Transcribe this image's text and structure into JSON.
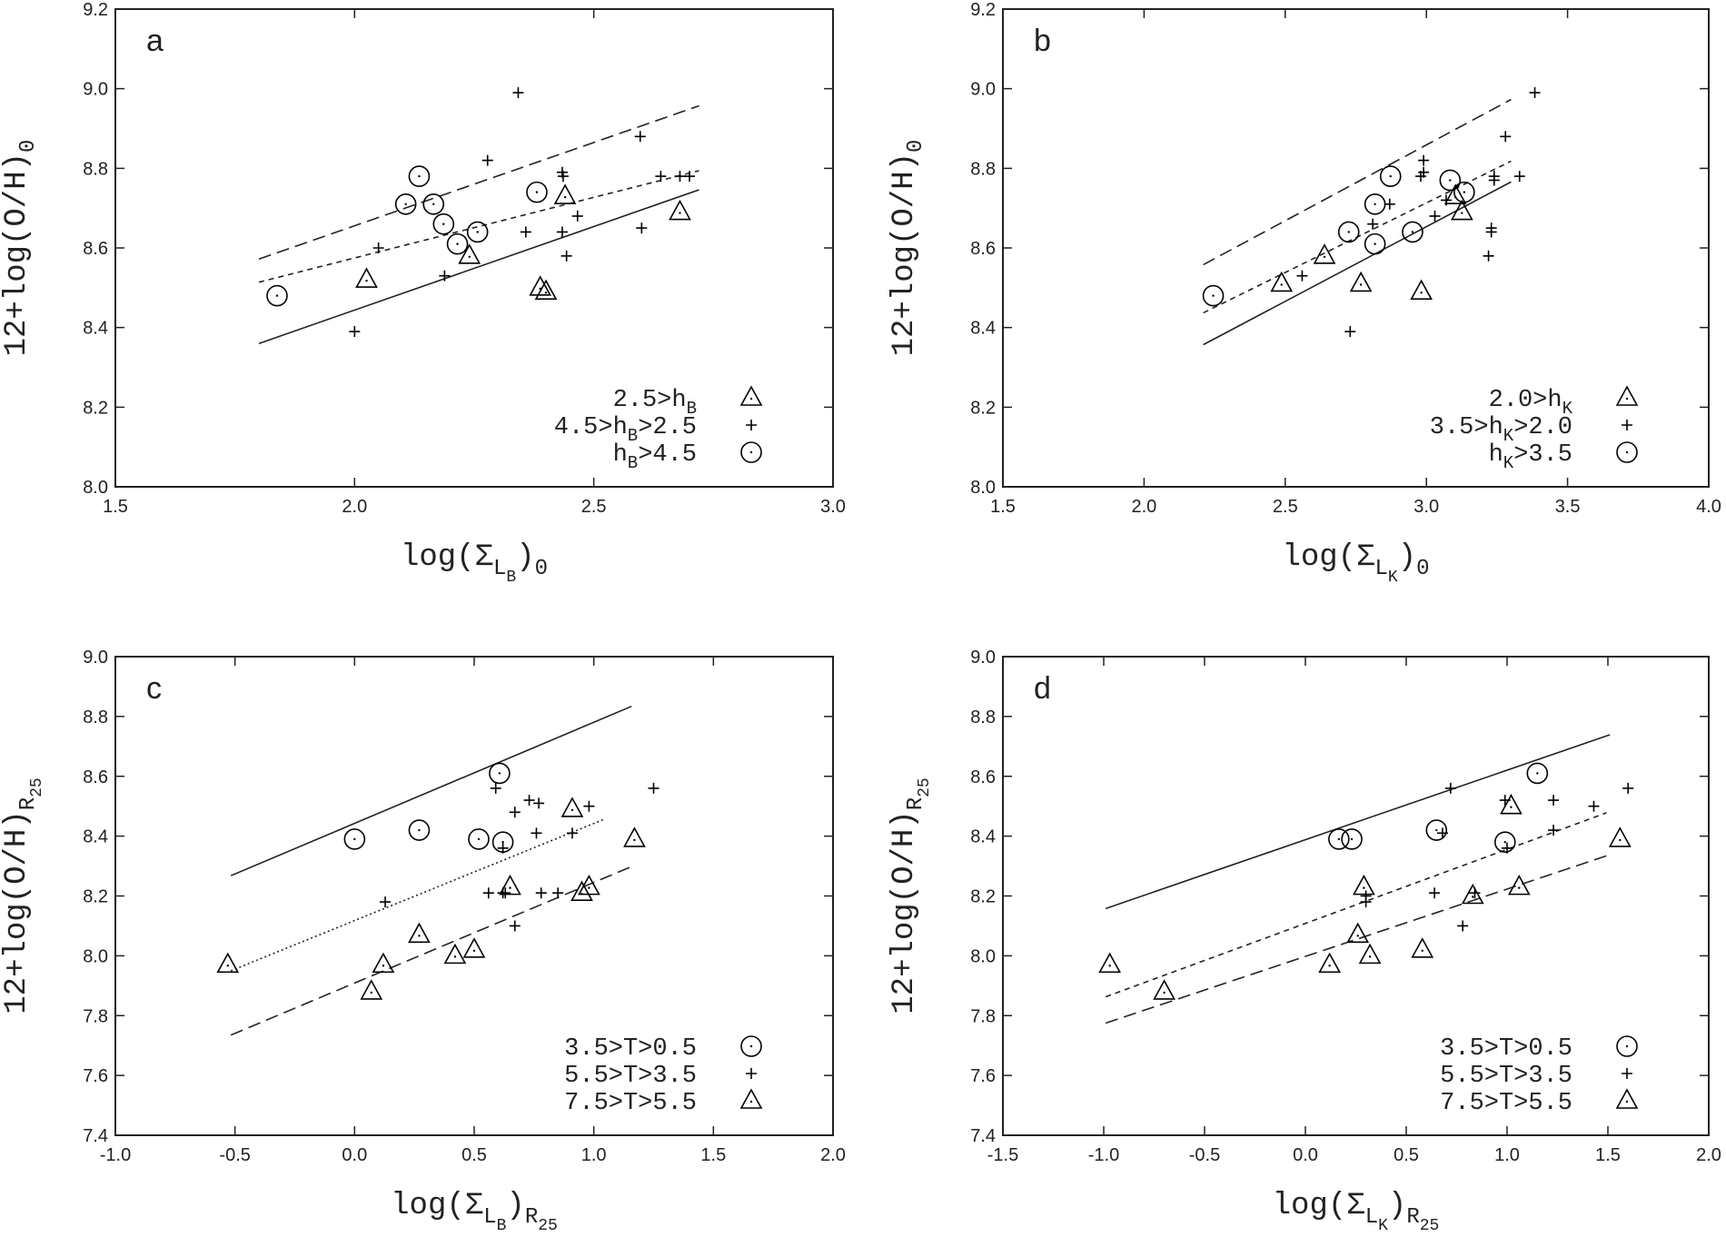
{
  "chart_data": [
    {
      "type": "scatter",
      "panel": "a",
      "xlabel": [
        "log(Σ",
        "L",
        "B",
        ")",
        "0"
      ],
      "ylabel": [
        "12+log(O/H)",
        "0"
      ],
      "xlim": [
        1.5,
        3.0
      ],
      "ylim": [
        8.0,
        9.2
      ],
      "xticks": [
        1.5,
        {
          "value": 2,
          "label": "2.0"
        },
        2.5,
        {
          "value": 3,
          "label": "3.0"
        }
      ],
      "yticks": [
        {
          "value": 8,
          "label": "8.0"
        },
        8.2,
        8.4,
        8.6,
        8.8,
        {
          "value": 9,
          "label": "9.0"
        },
        9.2
      ],
      "series": [
        {
          "name": [
            "2.5>h",
            "B"
          ],
          "marker": "triangle",
          "color": "#000000",
          "x": [
            2.025,
            2.24,
            2.388,
            2.4,
            2.44,
            2.68
          ],
          "y": [
            8.52,
            8.58,
            8.5,
            8.49,
            8.73,
            8.69
          ]
        },
        {
          "name": [
            "4.5>h",
            "B",
            ">2.5"
          ],
          "marker": "plus",
          "color": "#000000",
          "x": [
            2.342,
            2.278,
            2.05,
            2.0,
            2.188,
            2.358,
            2.434,
            2.436,
            2.434,
            2.443,
            2.466,
            2.597,
            2.6,
            2.64,
            2.68,
            2.7
          ],
          "y": [
            8.99,
            8.82,
            8.6,
            8.39,
            8.53,
            8.64,
            8.79,
            8.78,
            8.64,
            8.58,
            8.68,
            8.88,
            8.65,
            8.78,
            8.78,
            8.78
          ]
        },
        {
          "name": [
            "h",
            "B",
            ">4.5"
          ],
          "marker": "circle",
          "color": "#000000",
          "x": [
            1.838,
            2.135,
            2.107,
            2.165,
            2.186,
            2.215,
            2.257,
            2.381
          ],
          "y": [
            8.48,
            8.78,
            8.71,
            8.71,
            8.66,
            8.61,
            8.64,
            8.74
          ]
        }
      ],
      "fits": [
        {
          "style": "solid",
          "x": [
            1.8,
            2.72
          ],
          "y": [
            8.36,
            8.746
          ]
        },
        {
          "style": "dashed",
          "x": [
            1.8,
            2.72
          ],
          "y": [
            8.572,
            8.957
          ]
        },
        {
          "style": "shortdash",
          "x": [
            1.8,
            2.72
          ],
          "y": [
            8.514,
            8.794
          ]
        }
      ]
    },
    {
      "type": "scatter",
      "panel": "b",
      "xlabel": [
        "log(Σ",
        "L",
        "K",
        ")",
        "0"
      ],
      "ylabel": [
        "12+log(O/H)",
        "0"
      ],
      "xlim": [
        1.5,
        4.0
      ],
      "ylim": [
        8.0,
        9.2
      ],
      "xticks": [
        1.5,
        {
          "value": 2,
          "label": "2.0"
        },
        2.5,
        {
          "value": 3,
          "label": "3.0"
        },
        3.5,
        {
          "value": 4,
          "label": "4.0"
        }
      ],
      "yticks": [
        {
          "value": 8,
          "label": "8.0"
        },
        8.2,
        8.4,
        8.6,
        8.8,
        {
          "value": 9,
          "label": "9.0"
        },
        9.2
      ],
      "series": [
        {
          "name": [
            "2.0>h",
            "K"
          ],
          "marker": "triangle",
          "color": "#000000",
          "x": [
            2.487,
            2.639,
            2.768,
            2.982,
            3.103,
            3.126
          ],
          "y": [
            8.51,
            8.58,
            8.51,
            8.49,
            8.73,
            8.69
          ]
        },
        {
          "name": [
            "3.5>h",
            "K",
            ">2.0"
          ],
          "marker": "plus",
          "color": "#000000",
          "x": [
            3.384,
            3.28,
            2.99,
            2.99,
            2.98,
            2.87,
            2.81,
            3.07,
            3.03,
            3.24,
            3.24,
            3.33,
            3.23,
            3.23,
            3.22,
            2.56,
            2.73
          ],
          "y": [
            8.99,
            8.88,
            8.82,
            8.79,
            8.78,
            8.71,
            8.66,
            8.72,
            8.68,
            8.78,
            8.77,
            8.78,
            8.65,
            8.64,
            8.58,
            8.53,
            8.39
          ]
        },
        {
          "name": [
            "h",
            "K",
            ">3.5"
          ],
          "marker": "circle",
          "color": "#000000",
          "x": [
            2.245,
            2.873,
            2.818,
            2.725,
            2.818,
            2.951,
            3.084,
            3.134
          ],
          "y": [
            8.48,
            8.78,
            8.71,
            8.64,
            8.61,
            8.64,
            8.77,
            8.74
          ]
        }
      ],
      "fits": [
        {
          "style": "solid",
          "x": [
            2.21,
            3.3
          ],
          "y": [
            8.357,
            8.766
          ]
        },
        {
          "style": "dashed",
          "x": [
            2.21,
            3.3
          ],
          "y": [
            8.558,
            8.973
          ]
        },
        {
          "style": "shortdash",
          "x": [
            2.21,
            3.3
          ],
          "y": [
            8.437,
            8.818
          ]
        }
      ]
    },
    {
      "type": "scatter",
      "panel": "c",
      "xlabel": [
        "log(Σ",
        "L",
        "B",
        ")",
        "R",
        "25"
      ],
      "ylabel": [
        "12+log(O/H)",
        "R",
        "25"
      ],
      "xlim": [
        -1.0,
        2.0
      ],
      "ylim": [
        7.4,
        9.0
      ],
      "xticks": [
        {
          "value": -1,
          "label": "-1.0"
        },
        -0.5,
        {
          "value": 0,
          "label": "0.0"
        },
        0.5,
        {
          "value": 1,
          "label": "1.0"
        },
        1.5,
        {
          "value": 2,
          "label": "2.0"
        }
      ],
      "yticks": [
        7.4,
        7.6,
        7.8,
        {
          "value": 8,
          "label": "8.0"
        },
        8.2,
        8.4,
        8.6,
        8.8,
        {
          "value": 9,
          "label": "9.0"
        }
      ],
      "series": [
        {
          "name": [
            "3.5>T>0.5"
          ],
          "marker": "circle",
          "color": "#000000",
          "x": [
            0.0,
            0.27,
            0.606,
            0.519,
            0.62
          ],
          "y": [
            8.39,
            8.42,
            8.61,
            8.39,
            8.38
          ]
        },
        {
          "name": [
            "5.5>T>3.5"
          ],
          "marker": "plus",
          "color": "#000000",
          "x": [
            0.128,
            0.59,
            0.62,
            0.67,
            0.73,
            0.77,
            0.76,
            0.56,
            0.62,
            0.63,
            0.67,
            0.78,
            0.85,
            0.91,
            0.98,
            1.25
          ],
          "y": [
            8.18,
            8.56,
            8.36,
            8.48,
            8.52,
            8.51,
            8.41,
            8.21,
            8.21,
            8.21,
            8.1,
            8.21,
            8.21,
            8.41,
            8.5,
            8.56
          ]
        },
        {
          "name": [
            "7.5>T>5.5"
          ],
          "marker": "triangle",
          "color": "#000000",
          "x": [
            -0.53,
            0.07,
            0.12,
            0.27,
            0.42,
            0.5,
            0.65,
            0.91,
            0.95,
            0.98,
            1.17
          ],
          "y": [
            7.97,
            7.88,
            7.97,
            8.07,
            8.0,
            8.02,
            8.23,
            8.49,
            8.21,
            8.23,
            8.39
          ]
        }
      ],
      "fits": [
        {
          "style": "solid",
          "x": [
            -0.517,
            1.158
          ],
          "y": [
            8.268,
            8.834
          ]
        },
        {
          "style": "dotted",
          "x": [
            -0.517,
            1.039
          ],
          "y": [
            7.95,
            8.455
          ]
        },
        {
          "style": "dashed",
          "x": [
            -0.517,
            1.163
          ],
          "y": [
            7.735,
            8.3
          ]
        }
      ]
    },
    {
      "type": "scatter",
      "panel": "d",
      "xlabel": [
        "log(Σ",
        "L",
        "K",
        ")",
        "R",
        "25"
      ],
      "ylabel": [
        "12+log(O/H)",
        "R",
        "25"
      ],
      "xlim": [
        -1.5,
        2.0
      ],
      "ylim": [
        7.4,
        9.0
      ],
      "xticks": [
        -1.5,
        {
          "value": -1,
          "label": "-1.0"
        },
        -0.5,
        {
          "value": 0,
          "label": "0.0"
        },
        0.5,
        {
          "value": 1,
          "label": "1.0"
        },
        1.5,
        {
          "value": 2,
          "label": "2.0"
        }
      ],
      "yticks": [
        7.4,
        7.6,
        7.8,
        {
          "value": 8,
          "label": "8.0"
        },
        8.2,
        8.4,
        8.6,
        8.8,
        {
          "value": 9,
          "label": "9.0"
        }
      ],
      "series": [
        {
          "name": [
            "3.5>T>0.5"
          ],
          "marker": "circle",
          "color": "#000000",
          "x": [
            0.166,
            0.23,
            0.65,
            0.99,
            1.15
          ],
          "y": [
            8.39,
            8.39,
            8.42,
            8.38,
            8.61
          ]
        },
        {
          "name": [
            "5.5>T>3.5"
          ],
          "marker": "plus",
          "color": "#000000",
          "x": [
            0.3,
            0.3,
            0.64,
            0.68,
            0.72,
            0.78,
            0.84,
            0.99,
            1.0,
            1.23,
            1.23,
            1.43,
            1.6
          ],
          "y": [
            8.2,
            8.18,
            8.21,
            8.41,
            8.56,
            8.1,
            8.21,
            8.52,
            8.36,
            8.52,
            8.42,
            8.5,
            8.56
          ]
        },
        {
          "name": [
            "7.5>T>5.5"
          ],
          "marker": "triangle",
          "color": "#000000",
          "x": [
            -0.97,
            -0.7,
            0.12,
            0.26,
            0.29,
            0.32,
            0.58,
            0.83,
            1.02,
            1.06,
            1.56
          ],
          "y": [
            7.97,
            7.88,
            7.97,
            8.07,
            8.23,
            8.0,
            8.02,
            8.2,
            8.5,
            8.23,
            8.39
          ]
        }
      ],
      "fits": [
        {
          "style": "solid",
          "x": [
            -0.99,
            1.51
          ],
          "y": [
            8.158,
            8.739
          ]
        },
        {
          "style": "shortdash",
          "x": [
            -0.99,
            1.493
          ],
          "y": [
            7.863,
            8.478
          ]
        },
        {
          "style": "dashed",
          "x": [
            -0.99,
            1.51
          ],
          "y": [
            7.775,
            8.338
          ]
        }
      ]
    }
  ]
}
